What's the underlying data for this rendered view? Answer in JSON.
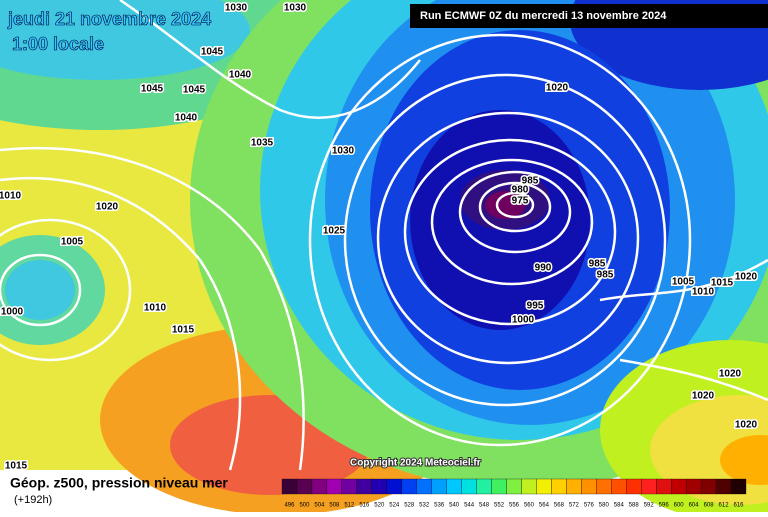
{
  "header": {
    "date": "jeudi 21 novembre 2024",
    "time": "1:00 locale",
    "run": "Run ECMWF 0Z du mercredi 13 novembre 2024"
  },
  "isobar_labels": [
    1030,
    1030,
    1045,
    1040,
    1045,
    1045,
    1040,
    1035,
    1030,
    1020,
    1010,
    1020,
    1005,
    1025,
    985,
    980,
    975,
    990,
    985,
    985,
    995,
    1000,
    1010,
    1015,
    1000,
    1005,
    1010,
    1015,
    1020,
    1020,
    1020,
    1020,
    1015
  ],
  "footer": {
    "copyright": "Copyright 2024 Meteociel.fr",
    "legend_title": "Géop. z500, pression niveau mer",
    "lead": "(+192h)"
  },
  "colorbar": {
    "labels": [
      496,
      500,
      504,
      508,
      512,
      516,
      520,
      524,
      528,
      532,
      536,
      540,
      544,
      548,
      552,
      556,
      560,
      564,
      568,
      572,
      576,
      580,
      584,
      588,
      592,
      596,
      600,
      604,
      608,
      612,
      616
    ],
    "colors": [
      "#3a0038",
      "#5a0050",
      "#800080",
      "#a000b0",
      "#7000a0",
      "#4000a0",
      "#2000b0",
      "#0010d0",
      "#0040f0",
      "#0070ff",
      "#00a0ff",
      "#00c8ff",
      "#00e0e0",
      "#20f0a0",
      "#40f060",
      "#80f040",
      "#c0f020",
      "#f0f000",
      "#ffd000",
      "#ffb000",
      "#ff9000",
      "#ff7000",
      "#ff5000",
      "#ff3000",
      "#ff2020",
      "#e01010",
      "#c00000",
      "#a00000",
      "#800000",
      "#500000",
      "#200000"
    ]
  }
}
